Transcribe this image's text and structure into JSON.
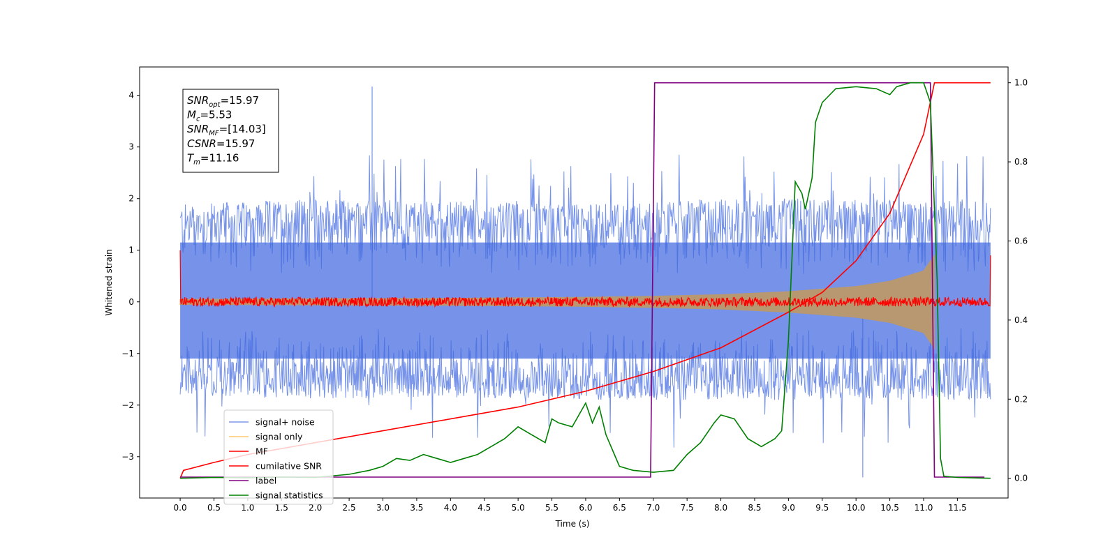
{
  "chart_data": {
    "type": "line",
    "xlabel": "Time (s)",
    "ylabel": "Whitened strain",
    "xlim": [
      -0.6,
      12.25
    ],
    "ylim": [
      -3.8,
      4.55
    ],
    "y2lim": [
      -0.05,
      1.04
    ],
    "x_ticks": [
      "0.0",
      "0.5",
      "1.0",
      "1.5",
      "2.0",
      "2.5",
      "3.0",
      "3.5",
      "4.0",
      "4.5",
      "5.0",
      "5.5",
      "6.0",
      "6.5",
      "7.0",
      "7.5",
      "8.0",
      "8.5",
      "9.0",
      "9.5",
      "10.0",
      "10.5",
      "11.0",
      "11.5"
    ],
    "y_ticks": [
      "−3",
      "−2",
      "−1",
      "0",
      "1",
      "2",
      "3",
      "4"
    ],
    "y2_ticks": [
      "0.0",
      "0.2",
      "0.4",
      "0.6",
      "0.8",
      "1.0"
    ],
    "grid": false,
    "legend_placement": "lower-left",
    "annotation": {
      "lines": [
        {
          "sym": "SNR",
          "sub": "opt",
          "value": "=15.97"
        },
        {
          "sym": "M",
          "sub": "c",
          "value": "=5.53"
        },
        {
          "sym": "SNR",
          "sub": "MF",
          "value": "=[14.03]"
        },
        {
          "sym": "CSNR",
          "sub": "",
          "value": "=15.97"
        },
        {
          "sym": "T",
          "sub": "m",
          "value": "=11.16"
        }
      ]
    },
    "series": [
      {
        "name": "signal+ noise",
        "color": "#4169e1",
        "axis": "left",
        "style": "noise band",
        "x_range": [
          0.0,
          11.99
        ],
        "upper_envelope": [
          [
            0.0,
            1.9
          ],
          [
            2.0,
            2.0
          ],
          [
            4.0,
            1.95
          ],
          [
            6.0,
            1.9
          ],
          [
            8.0,
            2.0
          ],
          [
            10.0,
            2.0
          ],
          [
            11.99,
            1.95
          ]
        ],
        "lower_envelope": [
          [
            0.0,
            -1.8
          ],
          [
            2.0,
            -1.9
          ],
          [
            4.0,
            -1.85
          ],
          [
            6.0,
            -1.9
          ],
          [
            8.0,
            -1.9
          ],
          [
            10.0,
            -1.9
          ],
          [
            11.99,
            -1.9
          ]
        ],
        "max_peak": [
          2.84,
          4.17
        ],
        "min_peak": [
          10.1,
          -3.4
        ]
      },
      {
        "name": "signal only",
        "color": "#ffa500",
        "axis": "left",
        "style": "chirp envelope",
        "envelope": [
          [
            0.0,
            0.05
          ],
          [
            2.0,
            0.06
          ],
          [
            4.0,
            0.07
          ],
          [
            6.0,
            0.09
          ],
          [
            7.0,
            0.11
          ],
          [
            8.0,
            0.14
          ],
          [
            9.0,
            0.2
          ],
          [
            10.0,
            0.3
          ],
          [
            10.5,
            0.4
          ],
          [
            11.0,
            0.6
          ],
          [
            11.16,
            0.9
          ]
        ]
      },
      {
        "name": "MF",
        "color": "#ff0000",
        "axis": "left",
        "style": "noisy line",
        "x_range": [
          0.0,
          11.99
        ],
        "baseline": 0.0,
        "amplitude": 0.09,
        "start_spike": [
          0.0,
          1.0
        ],
        "end_spike": [
          11.99,
          0.9
        ]
      },
      {
        "name": "cumilative SNR",
        "color": "#ff0000",
        "axis": "right",
        "points": [
          [
            0.0,
            0.0
          ],
          [
            0.05,
            0.02
          ],
          [
            0.5,
            0.04
          ],
          [
            1.0,
            0.06
          ],
          [
            2.0,
            0.09
          ],
          [
            3.0,
            0.12
          ],
          [
            4.0,
            0.15
          ],
          [
            5.0,
            0.18
          ],
          [
            6.0,
            0.22
          ],
          [
            7.0,
            0.27
          ],
          [
            8.0,
            0.33
          ],
          [
            9.0,
            0.42
          ],
          [
            9.5,
            0.47
          ],
          [
            10.0,
            0.55
          ],
          [
            10.5,
            0.67
          ],
          [
            11.0,
            0.87
          ],
          [
            11.16,
            1.0
          ],
          [
            11.99,
            1.0
          ]
        ]
      },
      {
        "name": "label",
        "color": "#800080",
        "axis": "right",
        "points": [
          [
            0.0,
            0.003
          ],
          [
            6.96,
            0.003
          ],
          [
            7.02,
            1.0
          ],
          [
            11.1,
            1.0
          ],
          [
            11.16,
            0.003
          ],
          [
            11.9,
            0.003
          ]
        ]
      },
      {
        "name": "signal statistics",
        "color": "#008000",
        "axis": "right",
        "points": [
          [
            0.0,
            0.0
          ],
          [
            0.5,
            0.002
          ],
          [
            1.0,
            0.001
          ],
          [
            1.5,
            0.003
          ],
          [
            2.0,
            0.002
          ],
          [
            2.5,
            0.01
          ],
          [
            2.8,
            0.02
          ],
          [
            3.0,
            0.03
          ],
          [
            3.2,
            0.05
          ],
          [
            3.4,
            0.045
          ],
          [
            3.6,
            0.06
          ],
          [
            3.8,
            0.05
          ],
          [
            4.0,
            0.04
          ],
          [
            4.2,
            0.05
          ],
          [
            4.4,
            0.06
          ],
          [
            4.6,
            0.08
          ],
          [
            4.8,
            0.1
          ],
          [
            5.0,
            0.13
          ],
          [
            5.2,
            0.11
          ],
          [
            5.4,
            0.09
          ],
          [
            5.5,
            0.15
          ],
          [
            5.6,
            0.14
          ],
          [
            5.8,
            0.13
          ],
          [
            6.0,
            0.19
          ],
          [
            6.1,
            0.14
          ],
          [
            6.2,
            0.18
          ],
          [
            6.3,
            0.11
          ],
          [
            6.4,
            0.07
          ],
          [
            6.5,
            0.03
          ],
          [
            6.7,
            0.02
          ],
          [
            7.0,
            0.015
          ],
          [
            7.3,
            0.02
          ],
          [
            7.5,
            0.06
          ],
          [
            7.7,
            0.09
          ],
          [
            7.9,
            0.14
          ],
          [
            8.0,
            0.16
          ],
          [
            8.2,
            0.15
          ],
          [
            8.4,
            0.1
          ],
          [
            8.6,
            0.08
          ],
          [
            8.8,
            0.1
          ],
          [
            8.9,
            0.12
          ],
          [
            9.0,
            0.35
          ],
          [
            9.1,
            0.75
          ],
          [
            9.2,
            0.72
          ],
          [
            9.25,
            0.68
          ],
          [
            9.35,
            0.76
          ],
          [
            9.4,
            0.9
          ],
          [
            9.5,
            0.95
          ],
          [
            9.7,
            0.985
          ],
          [
            10.0,
            0.99
          ],
          [
            10.3,
            0.985
          ],
          [
            10.5,
            0.97
          ],
          [
            10.6,
            0.99
          ],
          [
            10.8,
            1.0
          ],
          [
            11.0,
            1.0
          ],
          [
            11.1,
            0.95
          ],
          [
            11.2,
            0.5
          ],
          [
            11.25,
            0.05
          ],
          [
            11.3,
            0.005
          ],
          [
            11.5,
            0.002
          ],
          [
            11.99,
            0.0
          ]
        ]
      }
    ]
  }
}
